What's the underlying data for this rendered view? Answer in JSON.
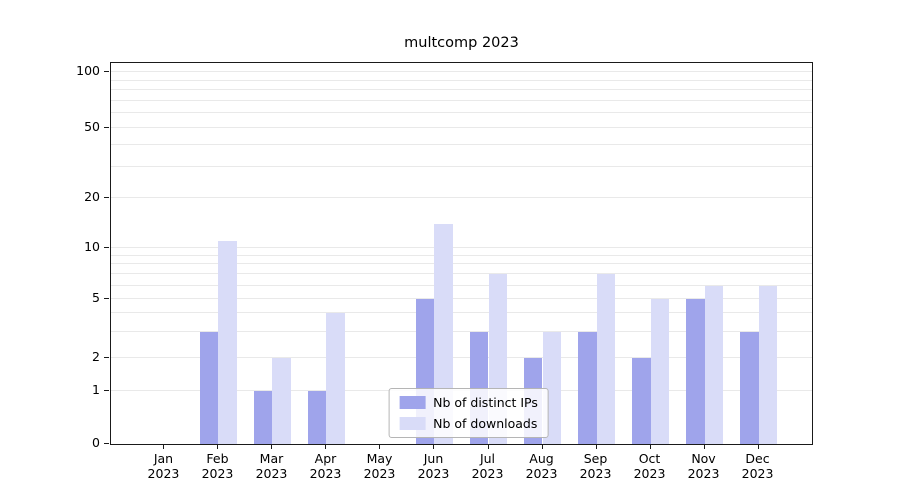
{
  "title": "multcomp 2023",
  "chart_data": {
    "type": "bar",
    "title": "multcomp 2023",
    "x_tick_year": "2023",
    "categories": [
      "Jan",
      "Feb",
      "Mar",
      "Apr",
      "May",
      "Jun",
      "Jul",
      "Aug",
      "Sep",
      "Oct",
      "Nov",
      "Dec"
    ],
    "series": [
      {
        "name": "Nb of distinct IPs",
        "color": "#9fa4eb",
        "values": [
          0,
          3,
          1,
          1,
          0,
          5,
          3,
          2,
          3,
          2,
          5,
          3
        ]
      },
      {
        "name": "Nb of downloads",
        "color": "#d9dcf8",
        "values": [
          0,
          11,
          2,
          4,
          0,
          14,
          7,
          3,
          7,
          5,
          6,
          6
        ]
      }
    ],
    "yscale": "symlog",
    "yticks": [
      100,
      50,
      20,
      10,
      5,
      2,
      1,
      0
    ],
    "ylim": [
      0,
      110
    ],
    "grid": true,
    "legend_position": "lower center"
  }
}
